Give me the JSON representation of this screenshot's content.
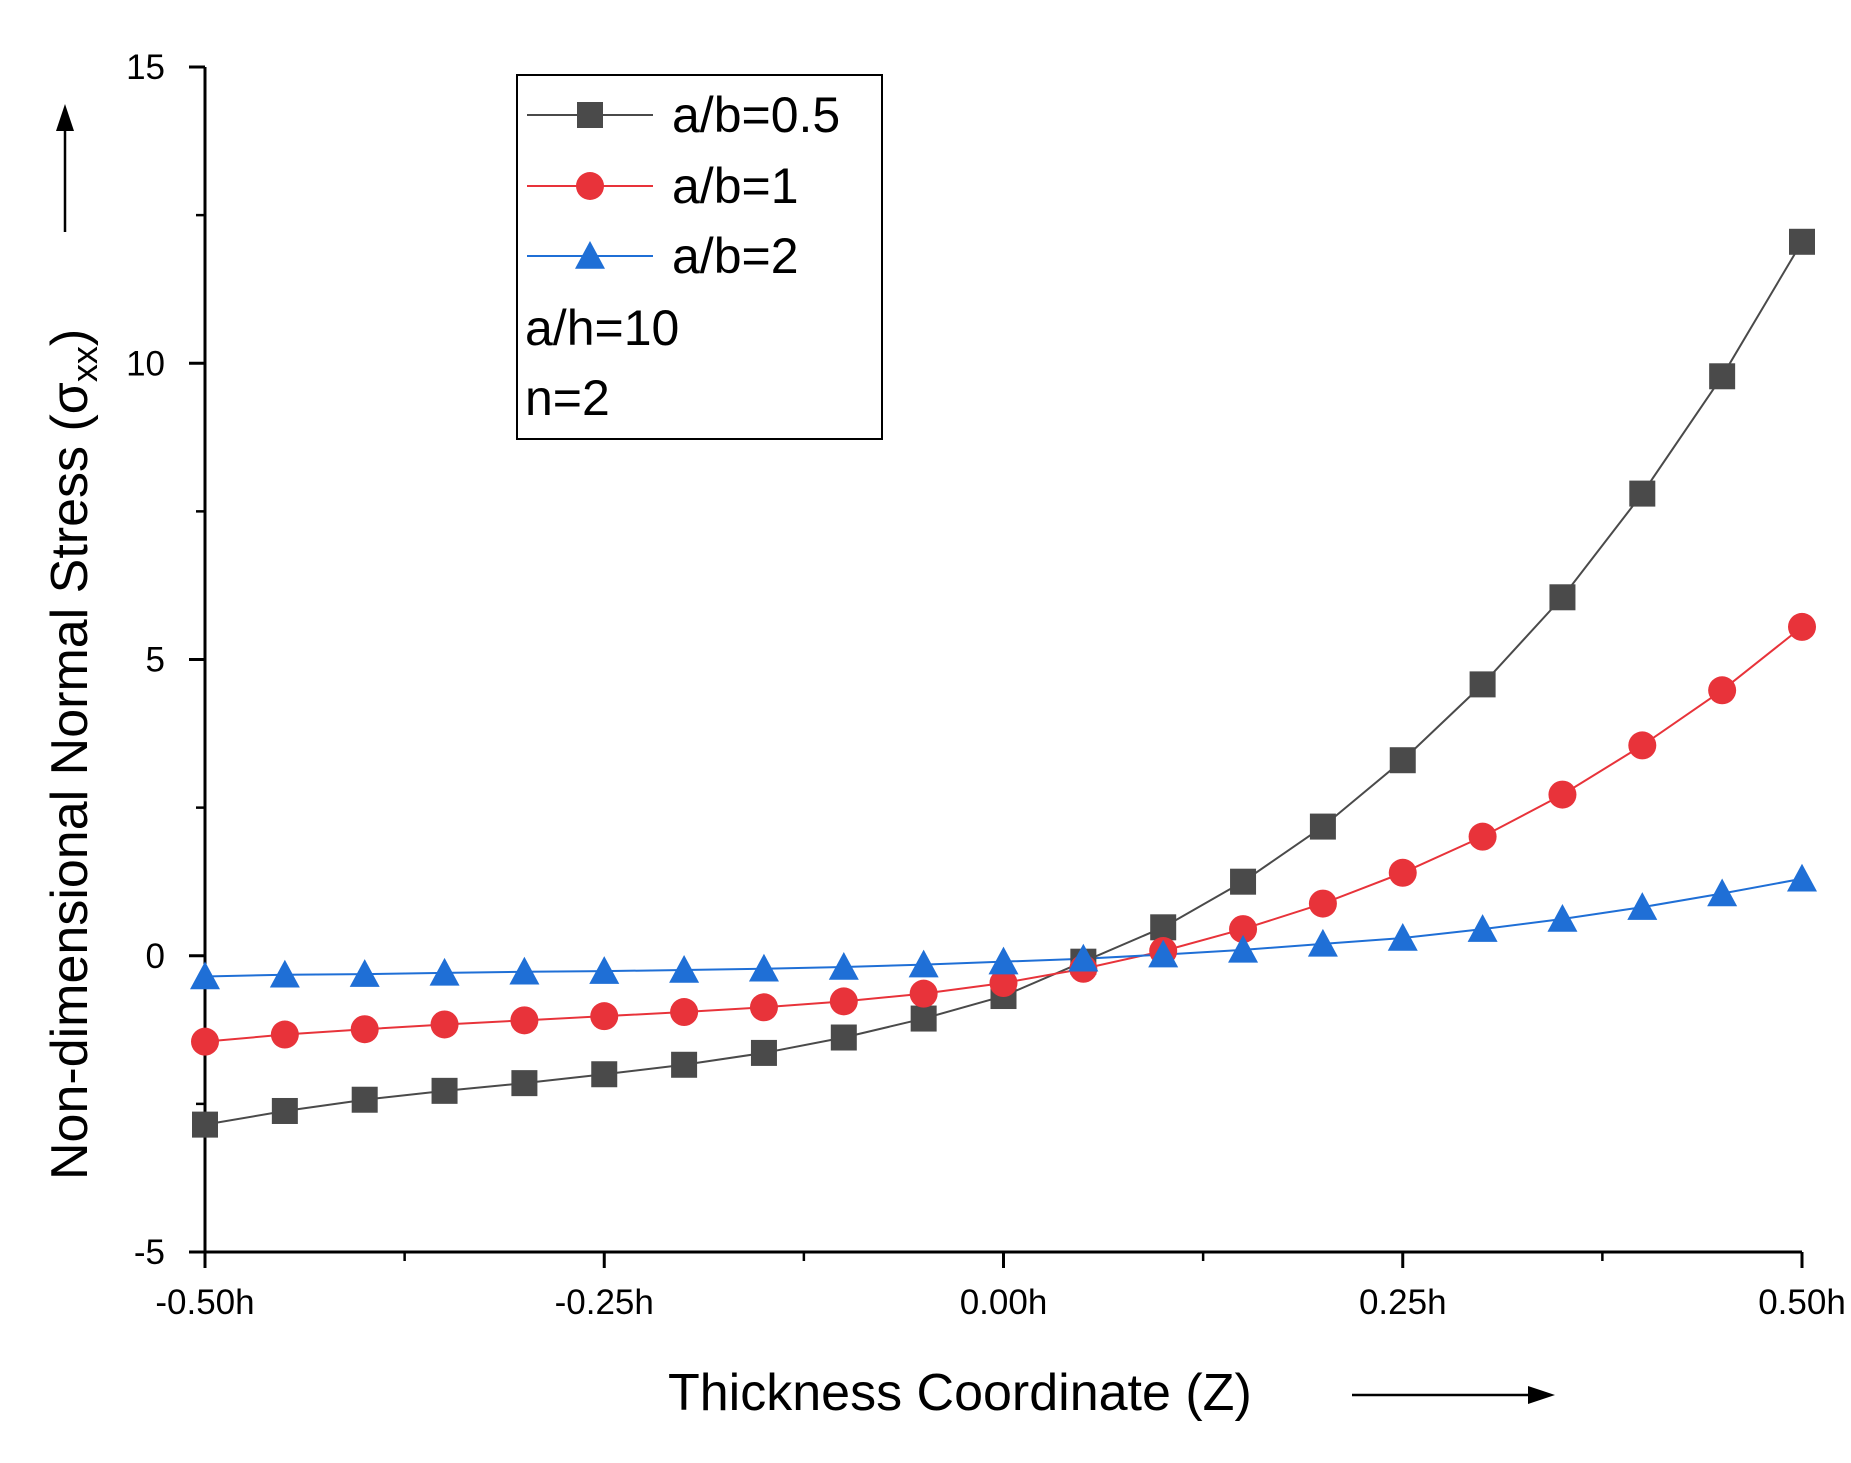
{
  "chart_data": {
    "type": "line",
    "xlabel": "Thickness Coordinate (Z)",
    "ylabel": "Non-dimensional Normal Stress (",
    "ylabel_symbol": "σ",
    "ylabel_subscript": "xx",
    "ylabel_close": ")",
    "xlim": [
      -0.5,
      0.5
    ],
    "ylim": [
      -5,
      15
    ],
    "x_ticks": [
      -0.5,
      -0.25,
      0.0,
      0.25,
      0.5
    ],
    "x_tick_labels": [
      "-0.50h",
      "-0.25h",
      "0.00h",
      "0.25h",
      "0.50h"
    ],
    "y_ticks": [
      -5,
      0,
      5,
      10,
      15
    ],
    "y_tick_labels": [
      "-5",
      "0",
      "5",
      "10",
      "15"
    ],
    "grid": false,
    "legend_position": "top-left",
    "legend_notes": [
      "a/h=10",
      "n=2"
    ],
    "x": [
      -0.5,
      -0.45,
      -0.4,
      -0.35,
      -0.3,
      -0.25,
      -0.2,
      -0.15,
      -0.1,
      -0.05,
      0.0,
      0.05,
      0.1,
      0.15,
      0.2,
      0.25,
      0.3,
      0.35,
      0.4,
      0.45,
      0.5
    ],
    "series": [
      {
        "name": "a/b=0.5",
        "color": "#4a4a4a",
        "marker": "square",
        "values": [
          -2.85,
          -2.62,
          -2.43,
          -2.28,
          -2.15,
          -2.0,
          -1.84,
          -1.64,
          -1.38,
          -1.06,
          -0.68,
          -0.1,
          0.48,
          1.25,
          2.18,
          3.3,
          4.58,
          6.05,
          7.8,
          9.78,
          12.05
        ]
      },
      {
        "name": "a/b=1",
        "color": "#e8333a",
        "marker": "circle",
        "values": [
          -1.45,
          -1.33,
          -1.24,
          -1.16,
          -1.09,
          -1.02,
          -0.95,
          -0.87,
          -0.77,
          -0.64,
          -0.46,
          -0.22,
          0.08,
          0.45,
          0.88,
          1.4,
          2.01,
          2.72,
          3.55,
          4.48,
          5.55
        ]
      },
      {
        "name": "a/b=2",
        "color": "#1f6fd6",
        "marker": "triangle",
        "values": [
          -0.35,
          -0.32,
          -0.31,
          -0.29,
          -0.27,
          -0.26,
          -0.24,
          -0.22,
          -0.19,
          -0.15,
          -0.1,
          -0.05,
          0.02,
          0.1,
          0.2,
          0.3,
          0.45,
          0.62,
          0.82,
          1.05,
          1.3
        ]
      }
    ]
  }
}
